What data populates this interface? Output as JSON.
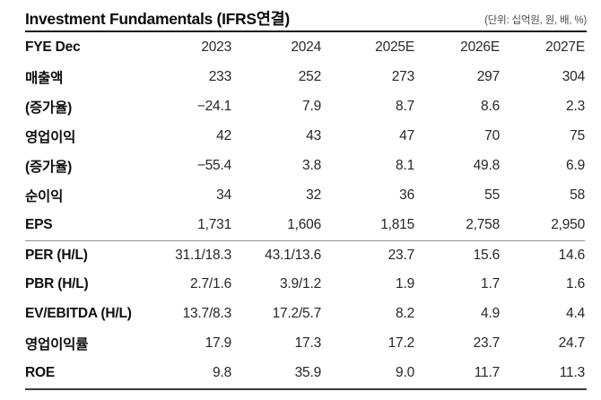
{
  "table": {
    "title": "Investment Fundamentals (IFRS연결)",
    "unit_note": "(단위: 십억원, 원, 배, %)",
    "columns": [
      "FYE Dec",
      "2023",
      "2024",
      "2025E",
      "2026E",
      "2027E"
    ],
    "rows": [
      {
        "label": "매출액",
        "values": [
          "233",
          "252",
          "273",
          "297",
          "304"
        ]
      },
      {
        "label": "(증가율)",
        "values": [
          "−24.1",
          "7.9",
          "8.7",
          "8.6",
          "2.3"
        ]
      },
      {
        "label": "영업이익",
        "values": [
          "42",
          "43",
          "47",
          "70",
          "75"
        ]
      },
      {
        "label": "(증가율)",
        "values": [
          "−55.4",
          "3.8",
          "8.1",
          "49.8",
          "6.9"
        ]
      },
      {
        "label": "순이익",
        "values": [
          "34",
          "32",
          "36",
          "55",
          "58"
        ]
      },
      {
        "label": "EPS",
        "values": [
          "1,731",
          "1,606",
          "1,815",
          "2,758",
          "2,950"
        ]
      },
      {
        "label": "PER (H/L)",
        "values": [
          "31.1/18.3",
          "43.1/13.6",
          "23.7",
          "15.6",
          "14.6"
        ],
        "section_start": true
      },
      {
        "label": "PBR (H/L)",
        "values": [
          "2.7/1.6",
          "3.9/1.2",
          "1.9",
          "1.7",
          "1.6"
        ]
      },
      {
        "label": "EV/EBITDA (H/L)",
        "values": [
          "13.7/8.3",
          "17.2/5.7",
          "8.2",
          "4.9",
          "4.4"
        ]
      },
      {
        "label": "영업이익률",
        "values": [
          "17.9",
          "17.3",
          "17.2",
          "23.7",
          "24.7"
        ]
      },
      {
        "label": "ROE",
        "values": [
          "9.8",
          "35.9",
          "9.0",
          "11.7",
          "11.3"
        ]
      }
    ]
  }
}
